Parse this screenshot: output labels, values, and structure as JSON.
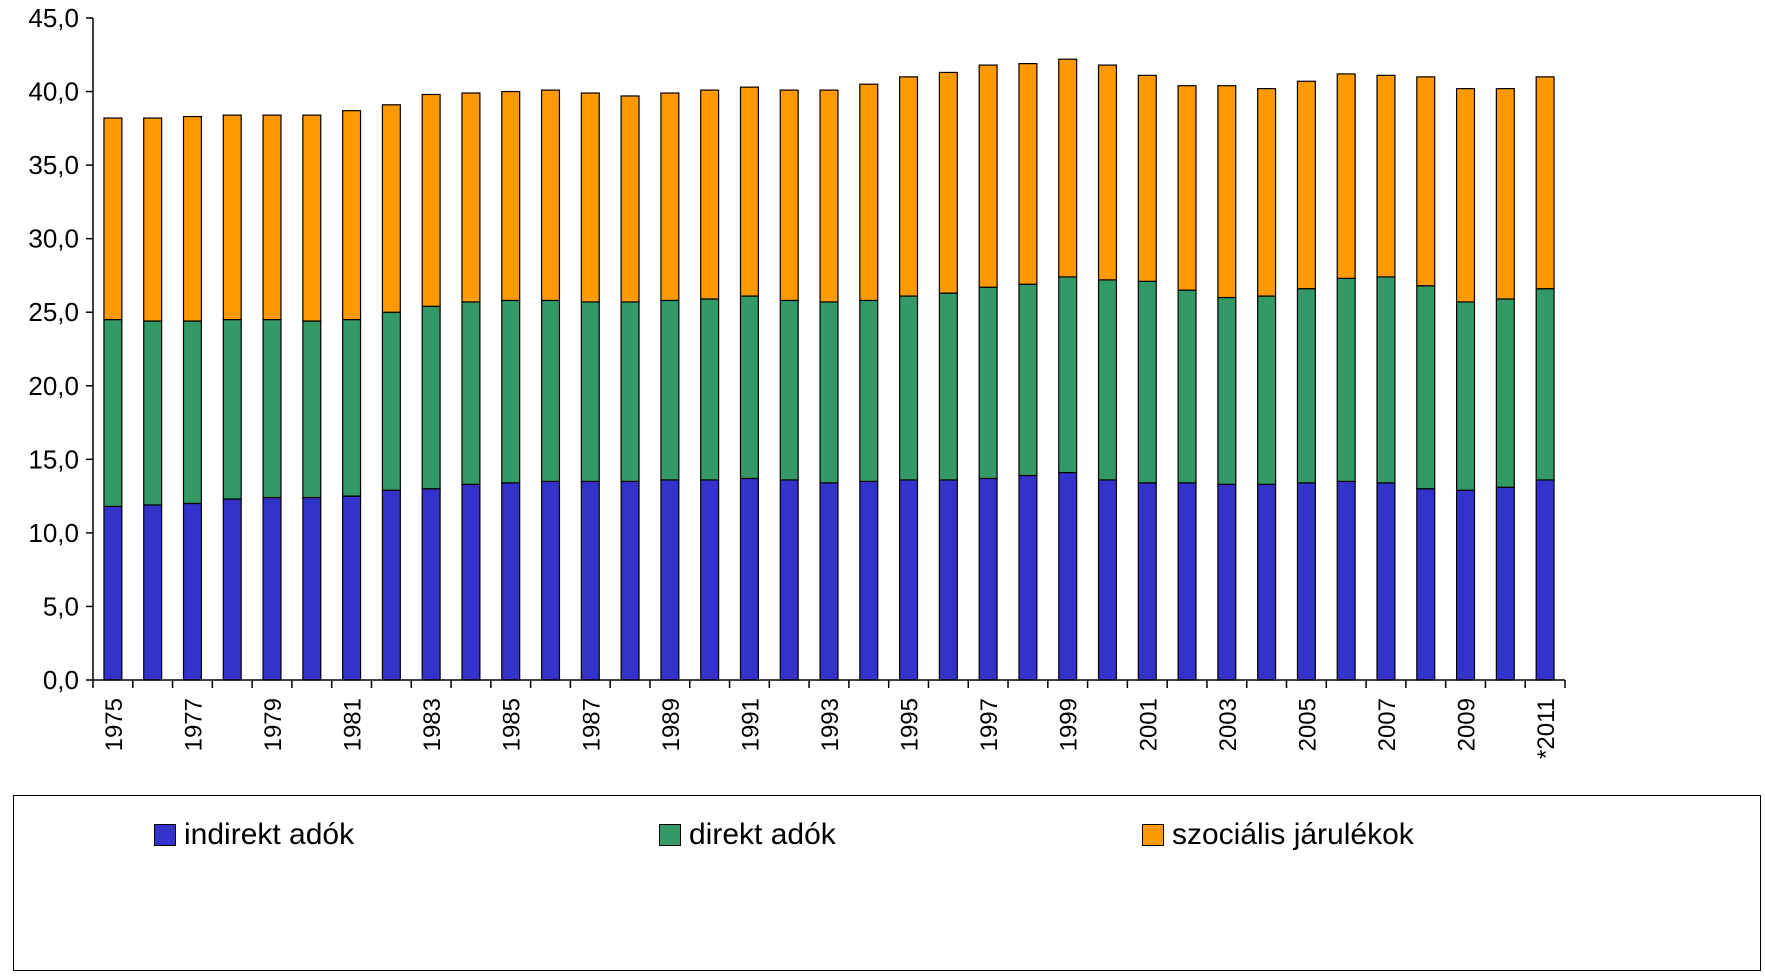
{
  "chart_data": {
    "type": "bar",
    "stacked": true,
    "x": [
      "1975",
      "1976",
      "1977",
      "1978",
      "1979",
      "1980",
      "1981",
      "1982",
      "1983",
      "1984",
      "1985",
      "1986",
      "1987",
      "1988",
      "1989",
      "1990",
      "1991",
      "1992",
      "1993",
      "1994",
      "1995",
      "1996",
      "1997",
      "1998",
      "1999",
      "2000",
      "2001",
      "2002",
      "2003",
      "2004",
      "2005",
      "2006",
      "2007",
      "2008",
      "2009",
      "2010",
      "*2011"
    ],
    "x_tick_labels": [
      "1975",
      "1977",
      "1979",
      "1981",
      "1983",
      "1985",
      "1987",
      "1989",
      "1991",
      "1993",
      "1995",
      "1997",
      "1999",
      "2001",
      "2003",
      "2005",
      "2007",
      "2009",
      "*2011"
    ],
    "series": [
      {
        "name": "indirekt adók",
        "color": "#3333CC",
        "values": [
          11.8,
          11.9,
          12.0,
          12.3,
          12.4,
          12.4,
          12.5,
          12.9,
          13.0,
          13.3,
          13.4,
          13.5,
          13.5,
          13.5,
          13.6,
          13.6,
          13.7,
          13.6,
          13.4,
          13.5,
          13.6,
          13.6,
          13.7,
          13.9,
          14.1,
          13.6,
          13.4,
          13.4,
          13.3,
          13.3,
          13.4,
          13.5,
          13.4,
          13.0,
          12.9,
          13.1,
          13.6
        ]
      },
      {
        "name": "direkt adók",
        "color": "#339966",
        "values": [
          12.7,
          12.5,
          12.4,
          12.2,
          12.1,
          12.0,
          12.0,
          12.1,
          12.4,
          12.4,
          12.4,
          12.3,
          12.2,
          12.2,
          12.2,
          12.3,
          12.4,
          12.2,
          12.3,
          12.3,
          12.5,
          12.7,
          13.0,
          13.0,
          13.3,
          13.6,
          13.7,
          13.1,
          12.7,
          12.8,
          13.2,
          13.8,
          14.0,
          13.8,
          12.8,
          12.8,
          13.0
        ]
      },
      {
        "name": "szociális járulékok",
        "color": "#FF9900",
        "values": [
          13.7,
          13.8,
          13.9,
          13.9,
          13.9,
          14.0,
          14.2,
          14.1,
          14.4,
          14.2,
          14.2,
          14.3,
          14.2,
          14.0,
          14.1,
          14.2,
          14.2,
          14.3,
          14.4,
          14.7,
          14.9,
          15.0,
          15.1,
          15.0,
          14.8,
          14.6,
          14.0,
          13.9,
          14.4,
          14.1,
          14.1,
          13.9,
          13.7,
          14.2,
          14.5,
          14.3,
          14.4
        ]
      }
    ],
    "y_tick_labels": [
      "0,0",
      "5,0",
      "10,0",
      "15,0",
      "20,0",
      "25,0",
      "30,0",
      "35,0",
      "40,0",
      "45,0"
    ],
    "ylim": [
      0,
      45
    ],
    "title": "",
    "xlabel": "",
    "ylabel": "",
    "grid": false,
    "legend_placement": "bottom"
  }
}
